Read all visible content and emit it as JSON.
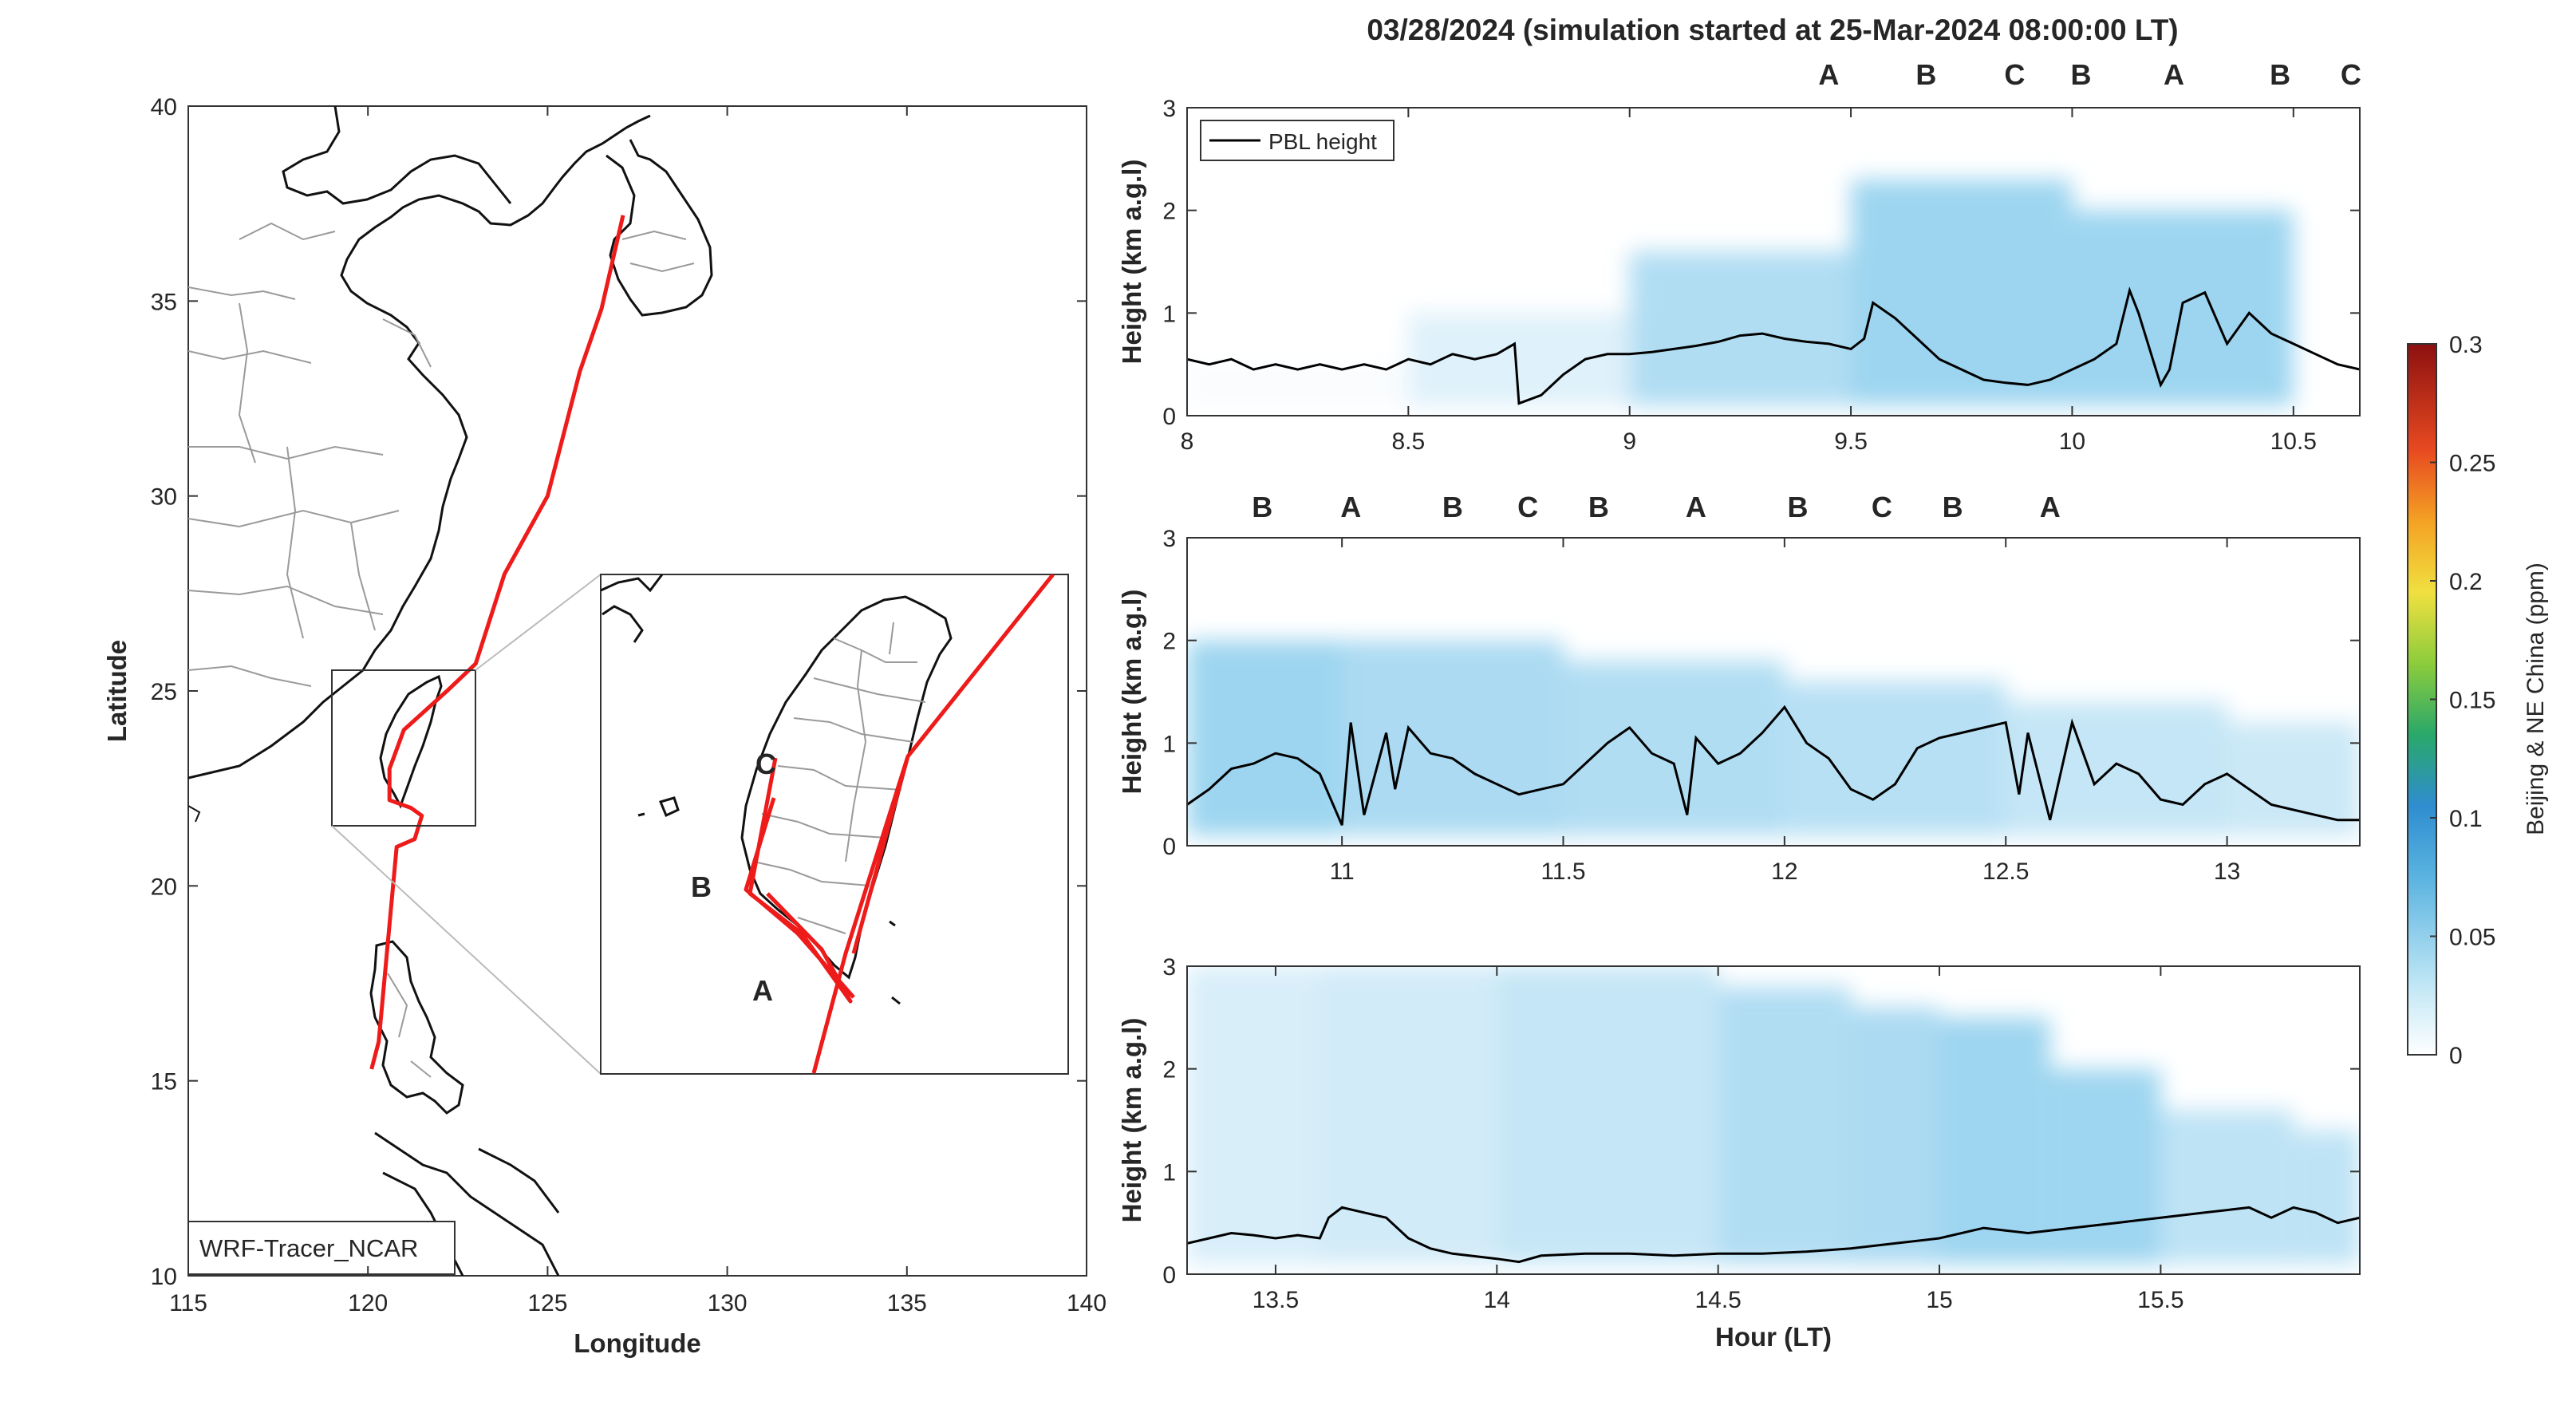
{
  "title": "03/28/2024 (simulation started at 25-Mar-2024 08:00:00 LT)",
  "colors": {
    "A": "#111111",
    "B": "#9b1830",
    "C": "#e0a81a",
    "trajectory": "#ee1b1b",
    "coast": "#111111",
    "border": "#9a9a9a"
  },
  "map": {
    "xlabel": "Longitude",
    "ylabel": "Latitude",
    "xticks": [
      "115",
      "120",
      "125",
      "130",
      "135",
      "140"
    ],
    "yticks": [
      "10",
      "15",
      "20",
      "25",
      "30",
      "35",
      "40"
    ],
    "xlim": [
      115,
      140
    ],
    "ylim": [
      10,
      40
    ],
    "model_label": "WRF-Tracer_NCAR",
    "inset_region": {
      "lon": [
        119,
        123
      ],
      "lat": [
        21.5,
        25.5
      ]
    },
    "trajectory_points": [
      [
        127.1,
        37.2
      ],
      [
        126.5,
        34.8
      ],
      [
        125.9,
        33.2
      ],
      [
        125,
        30
      ],
      [
        123.8,
        28
      ],
      [
        123,
        25.7
      ],
      [
        122.2,
        25
      ],
      [
        121,
        24
      ],
      [
        120.6,
        23
      ],
      [
        120.6,
        22.2
      ],
      [
        121.2,
        22
      ],
      [
        121.5,
        21.8
      ],
      [
        121.3,
        21.2
      ],
      [
        120.8,
        21
      ],
      [
        120.7,
        20
      ],
      [
        120.5,
        18
      ],
      [
        120.3,
        16
      ],
      [
        120.1,
        15.3
      ]
    ],
    "inset_labels": [
      {
        "id": "C",
        "lon": 120.6,
        "lat": 23.05
      },
      {
        "id": "B",
        "lon": 120.0,
        "lat": 22.9
      },
      {
        "id": "A",
        "lon": 120.7,
        "lat": 22.15
      }
    ]
  },
  "colorbar": {
    "label": "Beijing & NE China (ppm)",
    "ticks": [
      "0",
      "0.05",
      "0.1",
      "0.15",
      "0.2",
      "0.25",
      "0.3"
    ],
    "range": [
      0,
      0.3
    ]
  },
  "chart_data": {
    "type": "heatmap",
    "xlabel": "Hour (LT)",
    "ylabel": "Height (km a.g.l)",
    "legend": "PBL height",
    "legend_position": "top-left",
    "panels": [
      {
        "xlim": [
          8,
          10.65
        ],
        "ylim": [
          0,
          3
        ],
        "xticks": [
          "8",
          "8.5",
          "9",
          "9.5",
          "10",
          "10.5"
        ],
        "yticks": [
          "0",
          "1",
          "2",
          "3"
        ],
        "site_markers": [
          {
            "id": "A",
            "x": 9.45
          },
          {
            "id": "B",
            "x": 9.67
          },
          {
            "id": "C",
            "x": 9.87
          },
          {
            "id": "B",
            "x": 10.02
          },
          {
            "id": "A",
            "x": 10.23
          },
          {
            "id": "B",
            "x": 10.47
          },
          {
            "id": "C",
            "x": 10.63
          }
        ],
        "pbl_height": {
          "x": [
            8.0,
            8.05,
            8.1,
            8.15,
            8.2,
            8.25,
            8.3,
            8.35,
            8.4,
            8.45,
            8.5,
            8.55,
            8.6,
            8.65,
            8.7,
            8.74,
            8.75,
            8.8,
            8.85,
            8.9,
            8.95,
            9.0,
            9.05,
            9.1,
            9.15,
            9.2,
            9.25,
            9.3,
            9.35,
            9.4,
            9.45,
            9.5,
            9.53,
            9.55,
            9.6,
            9.65,
            9.7,
            9.75,
            9.8,
            9.85,
            9.9,
            9.95,
            10.0,
            10.05,
            10.1,
            10.13,
            10.15,
            10.2,
            10.22,
            10.25,
            10.3,
            10.35,
            10.4,
            10.45,
            10.5,
            10.55,
            10.6,
            10.65
          ],
          "y": [
            0.55,
            0.5,
            0.55,
            0.45,
            0.5,
            0.45,
            0.5,
            0.45,
            0.5,
            0.45,
            0.55,
            0.5,
            0.6,
            0.55,
            0.6,
            0.7,
            0.12,
            0.2,
            0.4,
            0.55,
            0.6,
            0.6,
            0.62,
            0.65,
            0.68,
            0.72,
            0.78,
            0.8,
            0.75,
            0.72,
            0.7,
            0.65,
            0.75,
            1.1,
            0.95,
            0.75,
            0.55,
            0.45,
            0.35,
            0.32,
            0.3,
            0.35,
            0.45,
            0.55,
            0.7,
            1.22,
            1.0,
            0.3,
            0.45,
            1.1,
            1.2,
            0.7,
            1.0,
            0.8,
            0.7,
            0.6,
            0.5,
            0.45
          ],
          "color": "#000000"
        },
        "concentration_profile": {
          "hours": [
            8.0,
            8.5,
            9.0,
            9.5,
            10.0,
            10.5
          ],
          "peak_ppm": [
            0.0,
            0.005,
            0.02,
            0.04,
            0.035,
            0.04
          ],
          "top_km": [
            0.5,
            1.0,
            1.6,
            2.6,
            2.3,
            2.0
          ]
        }
      },
      {
        "xlim": [
          10.65,
          13.3
        ],
        "ylim": [
          0,
          3
        ],
        "xticks": [
          "11",
          "11.5",
          "12",
          "12.5",
          "13"
        ],
        "yticks": [
          "0",
          "1",
          "2",
          "3"
        ],
        "site_markers": [
          {
            "id": "B",
            "x": 10.82
          },
          {
            "id": "A",
            "x": 11.02
          },
          {
            "id": "B",
            "x": 11.25
          },
          {
            "id": "C",
            "x": 11.42
          },
          {
            "id": "B",
            "x": 11.58
          },
          {
            "id": "A",
            "x": 11.8
          },
          {
            "id": "B",
            "x": 12.03
          },
          {
            "id": "C",
            "x": 12.22
          },
          {
            "id": "B",
            "x": 12.38
          },
          {
            "id": "A",
            "x": 12.6
          }
        ],
        "pbl_height": {
          "x": [
            10.65,
            10.7,
            10.75,
            10.8,
            10.85,
            10.9,
            10.95,
            11.0,
            11.02,
            11.05,
            11.1,
            11.12,
            11.15,
            11.2,
            11.25,
            11.3,
            11.35,
            11.4,
            11.45,
            11.5,
            11.55,
            11.6,
            11.65,
            11.7,
            11.75,
            11.78,
            11.8,
            11.85,
            11.9,
            11.95,
            12.0,
            12.05,
            12.1,
            12.15,
            12.2,
            12.25,
            12.3,
            12.35,
            12.4,
            12.45,
            12.5,
            12.53,
            12.55,
            12.6,
            12.65,
            12.7,
            12.75,
            12.8,
            12.85,
            12.9,
            12.95,
            13.0,
            13.05,
            13.1,
            13.15,
            13.2,
            13.25,
            13.3
          ],
          "y": [
            0.4,
            0.55,
            0.75,
            0.8,
            0.9,
            0.85,
            0.7,
            0.2,
            1.2,
            0.3,
            1.1,
            0.55,
            1.15,
            0.9,
            0.85,
            0.7,
            0.6,
            0.5,
            0.55,
            0.6,
            0.8,
            1.0,
            1.15,
            0.9,
            0.8,
            0.3,
            1.05,
            0.8,
            0.9,
            1.1,
            1.35,
            1.0,
            0.85,
            0.55,
            0.45,
            0.6,
            0.95,
            1.05,
            1.1,
            1.15,
            1.2,
            0.5,
            1.1,
            0.25,
            1.2,
            0.6,
            0.8,
            0.7,
            0.45,
            0.4,
            0.6,
            0.7,
            0.55,
            0.4,
            0.35,
            0.3,
            0.25,
            0.25
          ],
          "color": "#000000"
        },
        "concentration_profile": {
          "hours": [
            10.65,
            11.0,
            11.5,
            12.0,
            12.5,
            13.0,
            13.3
          ],
          "peak_ppm": [
            0.04,
            0.035,
            0.03,
            0.03,
            0.025,
            0.02,
            0.02
          ],
          "top_km": [
            2.0,
            2.2,
            2.0,
            1.8,
            1.6,
            1.4,
            1.2
          ]
        }
      },
      {
        "xlim": [
          13.3,
          15.95
        ],
        "ylim": [
          0,
          3
        ],
        "xticks": [
          "13.5",
          "14",
          "14.5",
          "15",
          "15.5"
        ],
        "yticks": [
          "0",
          "1",
          "2",
          "3"
        ],
        "xlabel": "Hour (LT)",
        "pbl_height": {
          "x": [
            13.3,
            13.35,
            13.4,
            13.45,
            13.5,
            13.55,
            13.6,
            13.62,
            13.65,
            13.7,
            13.75,
            13.8,
            13.85,
            13.9,
            14.0,
            14.05,
            14.1,
            14.2,
            14.3,
            14.4,
            14.5,
            14.6,
            14.7,
            14.8,
            14.9,
            15.0,
            15.1,
            15.2,
            15.3,
            15.4,
            15.5,
            15.6,
            15.7,
            15.75,
            15.8,
            15.85,
            15.9,
            15.95
          ],
          "y": [
            0.3,
            0.35,
            0.4,
            0.38,
            0.35,
            0.38,
            0.35,
            0.55,
            0.65,
            0.6,
            0.55,
            0.35,
            0.25,
            0.2,
            0.15,
            0.12,
            0.18,
            0.2,
            0.2,
            0.18,
            0.2,
            0.2,
            0.22,
            0.25,
            0.3,
            0.35,
            0.45,
            0.4,
            0.45,
            0.5,
            0.55,
            0.6,
            0.65,
            0.55,
            0.65,
            0.6,
            0.5,
            0.55
          ],
          "color": "#000000"
        },
        "concentration_profile": {
          "hours": [
            13.3,
            13.6,
            14.0,
            14.5,
            14.8,
            15.0,
            15.25,
            15.5,
            15.8,
            15.95
          ],
          "peak_ppm": [
            0.015,
            0.015,
            0.02,
            0.025,
            0.035,
            0.03,
            0.045,
            0.03,
            0.02,
            0.03
          ],
          "top_km": [
            3.0,
            3.0,
            3.0,
            3.0,
            2.8,
            2.6,
            2.5,
            2.0,
            1.6,
            1.4
          ]
        }
      }
    ]
  }
}
